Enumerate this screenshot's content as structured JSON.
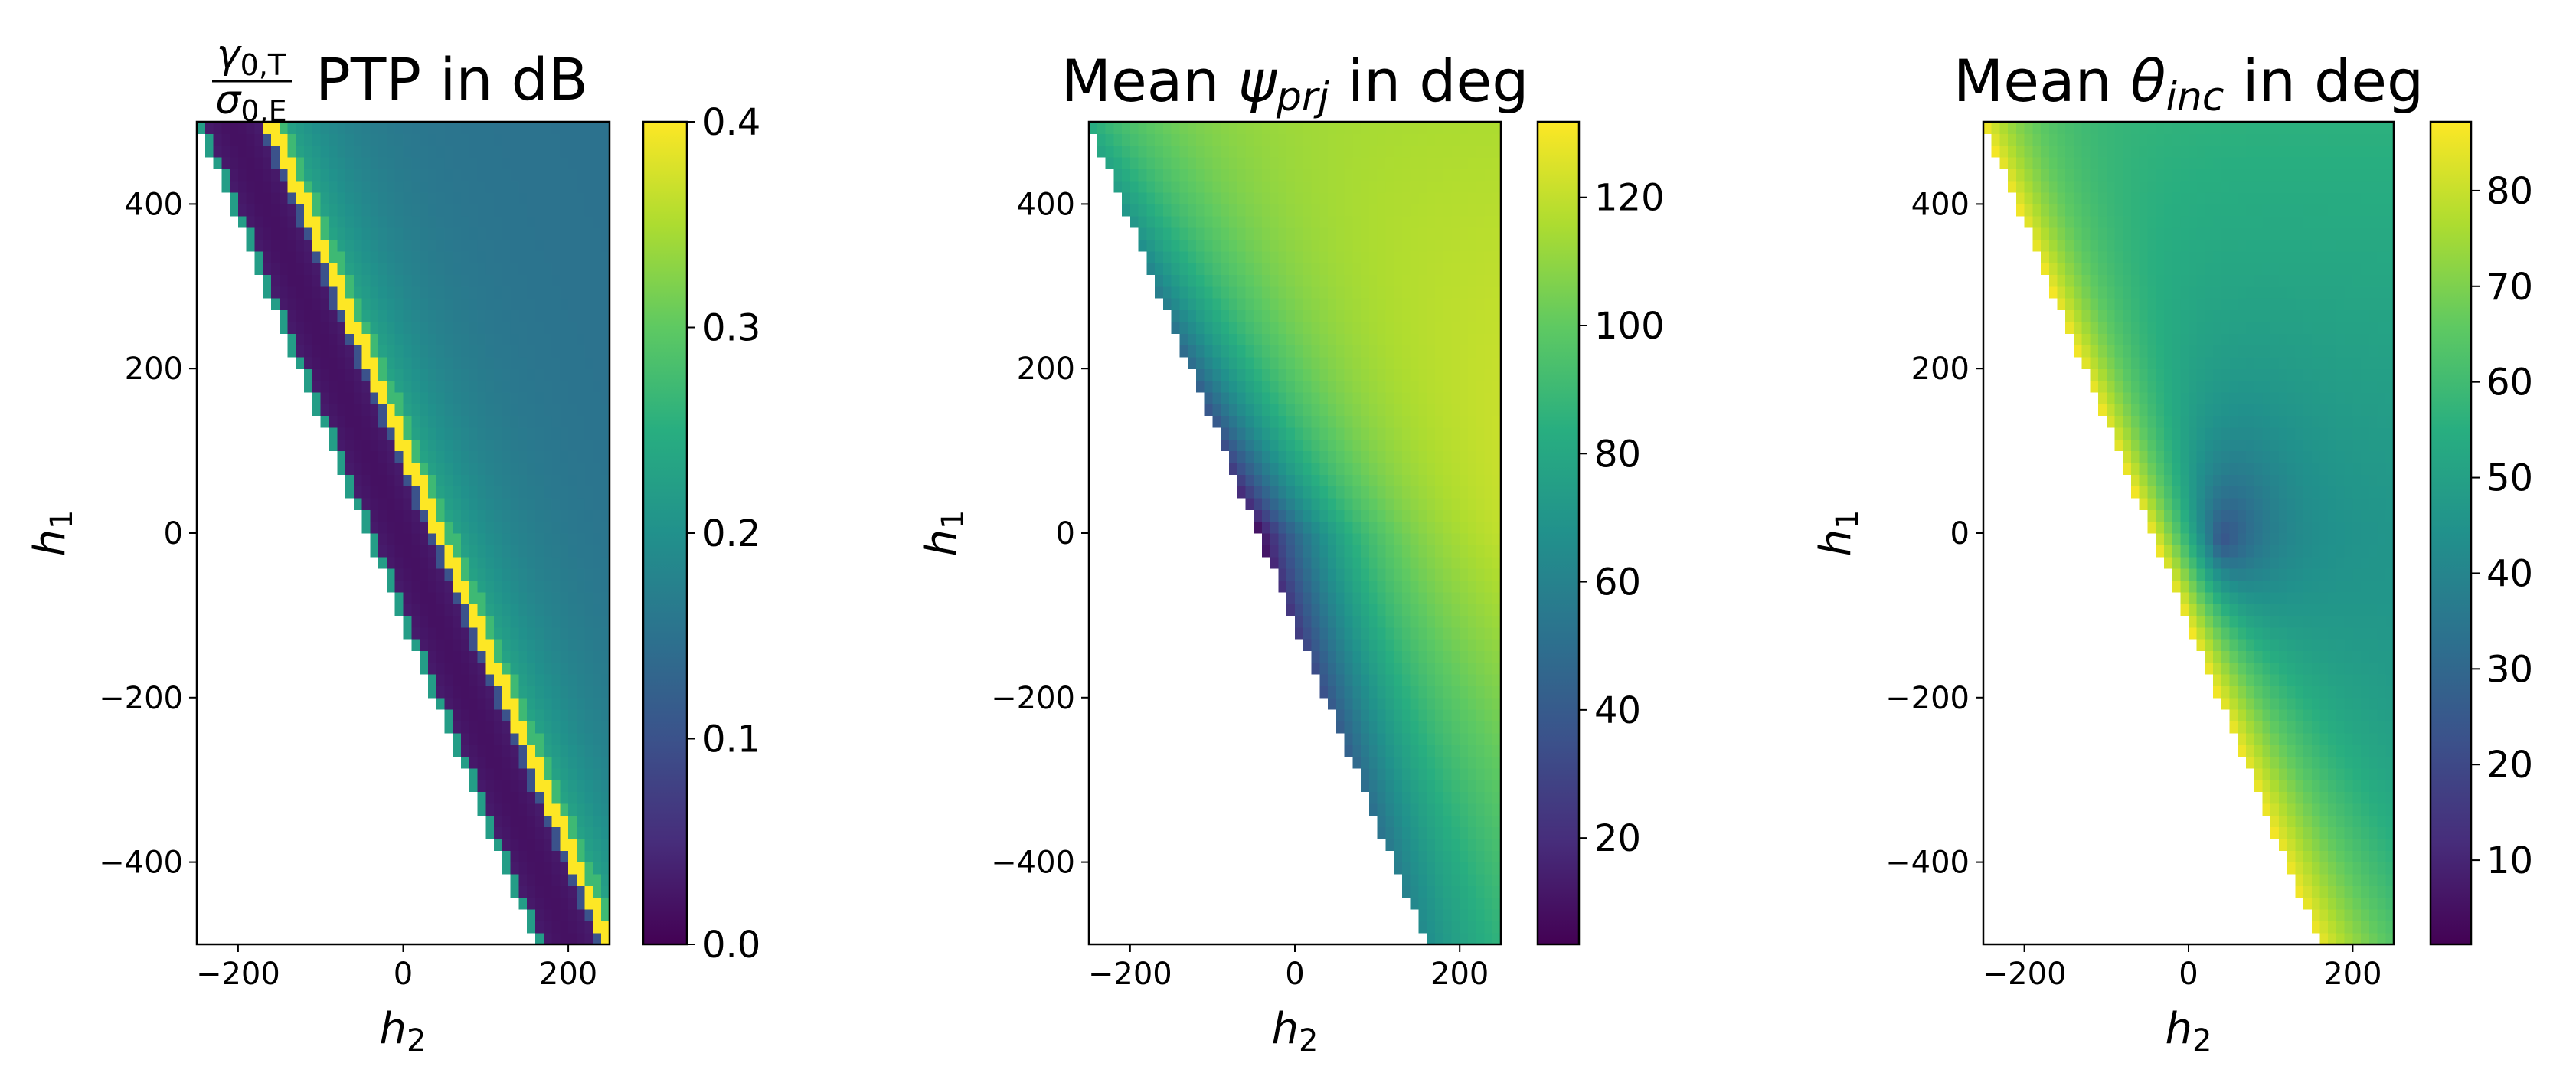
{
  "figure": {
    "colormap": "viridis",
    "missing_color": "#ffffff"
  },
  "chart_data": [
    {
      "type": "heatmap",
      "title": {
        "num_symbol": "γ",
        "num_sub": "0,T",
        "den_symbol": "σ",
        "den_sub": "0,E",
        "text": "PTP in dB"
      },
      "xlabel": {
        "symbol": "h",
        "sub": "2"
      },
      "ylabel": {
        "symbol": "h",
        "sub": "1"
      },
      "xlim": [
        -250,
        250
      ],
      "ylim": [
        -500,
        500
      ],
      "xticks": [
        {
          "value": -200,
          "label": "−200"
        },
        {
          "value": 0,
          "label": "0"
        },
        {
          "value": 200,
          "label": "200"
        }
      ],
      "yticks": [
        {
          "value": -400,
          "label": "−400"
        },
        {
          "value": -200,
          "label": "−200"
        },
        {
          "value": 0,
          "label": "0"
        },
        {
          "value": 200,
          "label": "200"
        },
        {
          "value": 400,
          "label": "400"
        }
      ],
      "colorbar": {
        "range": [
          0.0,
          0.4
        ],
        "ticks": [
          {
            "value": 0.0,
            "label": "0.0"
          },
          {
            "value": 0.1,
            "label": "0.1"
          },
          {
            "value": 0.2,
            "label": "0.2"
          },
          {
            "value": 0.3,
            "label": "0.3"
          },
          {
            "value": 0.4,
            "label": "0.4"
          }
        ]
      },
      "grid": false
    },
    {
      "type": "heatmap",
      "title": {
        "prefix": "Mean ",
        "symbol": "ψ",
        "sub": "prj",
        "suffix": " in deg"
      },
      "xlabel": {
        "symbol": "h",
        "sub": "2"
      },
      "ylabel": {
        "symbol": "h",
        "sub": "1"
      },
      "xlim": [
        -250,
        250
      ],
      "ylim": [
        -500,
        500
      ],
      "xticks": [
        {
          "value": -200,
          "label": "−200"
        },
        {
          "value": 0,
          "label": "0"
        },
        {
          "value": 200,
          "label": "200"
        }
      ],
      "yticks": [
        {
          "value": -400,
          "label": "−400"
        },
        {
          "value": -200,
          "label": "−200"
        },
        {
          "value": 0,
          "label": "0"
        },
        {
          "value": 200,
          "label": "200"
        },
        {
          "value": 400,
          "label": "400"
        }
      ],
      "colorbar": {
        "range": [
          3.4,
          131.8
        ],
        "ticks": [
          {
            "value": 20,
            "label": "20"
          },
          {
            "value": 40,
            "label": "40"
          },
          {
            "value": 60,
            "label": "60"
          },
          {
            "value": 80,
            "label": "80"
          },
          {
            "value": 100,
            "label": "100"
          },
          {
            "value": 120,
            "label": "120"
          }
        ]
      },
      "grid": false
    },
    {
      "type": "heatmap",
      "title": {
        "prefix": "Mean ",
        "symbol": "θ",
        "sub": "inc",
        "suffix": " in deg"
      },
      "xlabel": {
        "symbol": "h",
        "sub": "2"
      },
      "ylabel": {
        "symbol": "h",
        "sub": "1"
      },
      "xlim": [
        -250,
        250
      ],
      "ylim": [
        -500,
        500
      ],
      "xticks": [
        {
          "value": -200,
          "label": "−200"
        },
        {
          "value": 0,
          "label": "0"
        },
        {
          "value": 200,
          "label": "200"
        }
      ],
      "yticks": [
        {
          "value": -400,
          "label": "−400"
        },
        {
          "value": -200,
          "label": "−200"
        },
        {
          "value": 0,
          "label": "0"
        },
        {
          "value": 200,
          "label": "200"
        },
        {
          "value": 400,
          "label": "400"
        }
      ],
      "colorbar": {
        "range": [
          1.2,
          87.2
        ],
        "ticks": [
          {
            "value": 10,
            "label": "10"
          },
          {
            "value": 20,
            "label": "20"
          },
          {
            "value": 30,
            "label": "30"
          },
          {
            "value": 40,
            "label": "40"
          },
          {
            "value": 50,
            "label": "50"
          },
          {
            "value": 60,
            "label": "60"
          },
          {
            "value": 70,
            "label": "70"
          },
          {
            "value": 80,
            "label": "80"
          }
        ]
      },
      "grid": false
    }
  ]
}
